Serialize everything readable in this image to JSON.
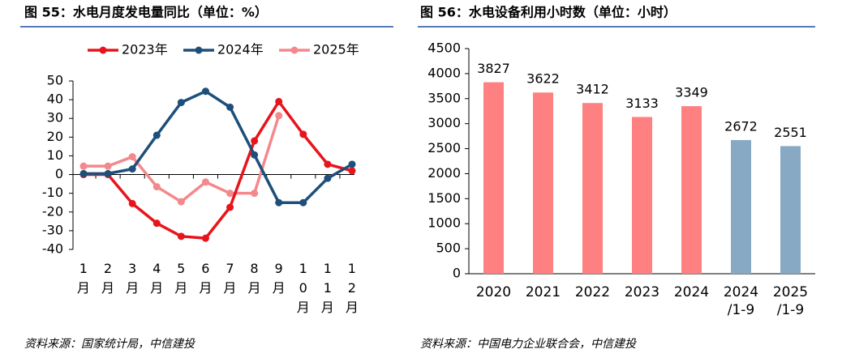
{
  "chart_data": [
    {
      "type": "line",
      "title": "图 55：水电月度发电量同比（单位：%）",
      "source": "资料来源：国家统计局，中信建投",
      "categories": [
        "1月",
        "2月",
        "3月",
        "4月",
        "5月",
        "6月",
        "7月",
        "8月",
        "9月",
        "10月",
        "11月",
        "12月"
      ],
      "series": [
        {
          "name": "2023年",
          "color": "#e8141b",
          "values": [
            0,
            0,
            -15.5,
            -26,
            -33,
            -34,
            -17.5,
            18,
            39,
            21.5,
            5.5,
            2
          ]
        },
        {
          "name": "2024年",
          "color": "#1d4f7a",
          "values": [
            0.5,
            0.5,
            3,
            21,
            38.5,
            44.5,
            36,
            10.5,
            -15,
            -15,
            -2,
            5.5
          ]
        },
        {
          "name": "2025年",
          "color": "#f4888c",
          "values": [
            4.5,
            4.5,
            9.5,
            -6.5,
            -14.5,
            -4,
            -10,
            -10,
            31.5,
            null,
            null,
            null
          ]
        }
      ],
      "ylim": [
        -40,
        50
      ],
      "yticks": [
        -40,
        -30,
        -20,
        -10,
        0,
        10,
        20,
        30,
        40,
        50
      ]
    },
    {
      "type": "bar",
      "title": "图 56：水电设备利用小时数（单位：小时）",
      "source": "资料来源：中国电力企业联合会，中信建投",
      "categories": [
        "2020",
        "2021",
        "2022",
        "2023",
        "2024",
        "2024\n/1-9",
        "2025\n/1-9"
      ],
      "values": [
        3827,
        3622,
        3412,
        3133,
        3349,
        2672,
        2551
      ],
      "colors": [
        "#ff8080",
        "#ff8080",
        "#ff8080",
        "#ff8080",
        "#ff8080",
        "#87a9c4",
        "#87a9c4"
      ],
      "ylim": [
        0,
        4500
      ],
      "yticks": [
        0,
        500,
        1000,
        1500,
        2000,
        2500,
        3000,
        3500,
        4000,
        4500
      ]
    }
  ]
}
